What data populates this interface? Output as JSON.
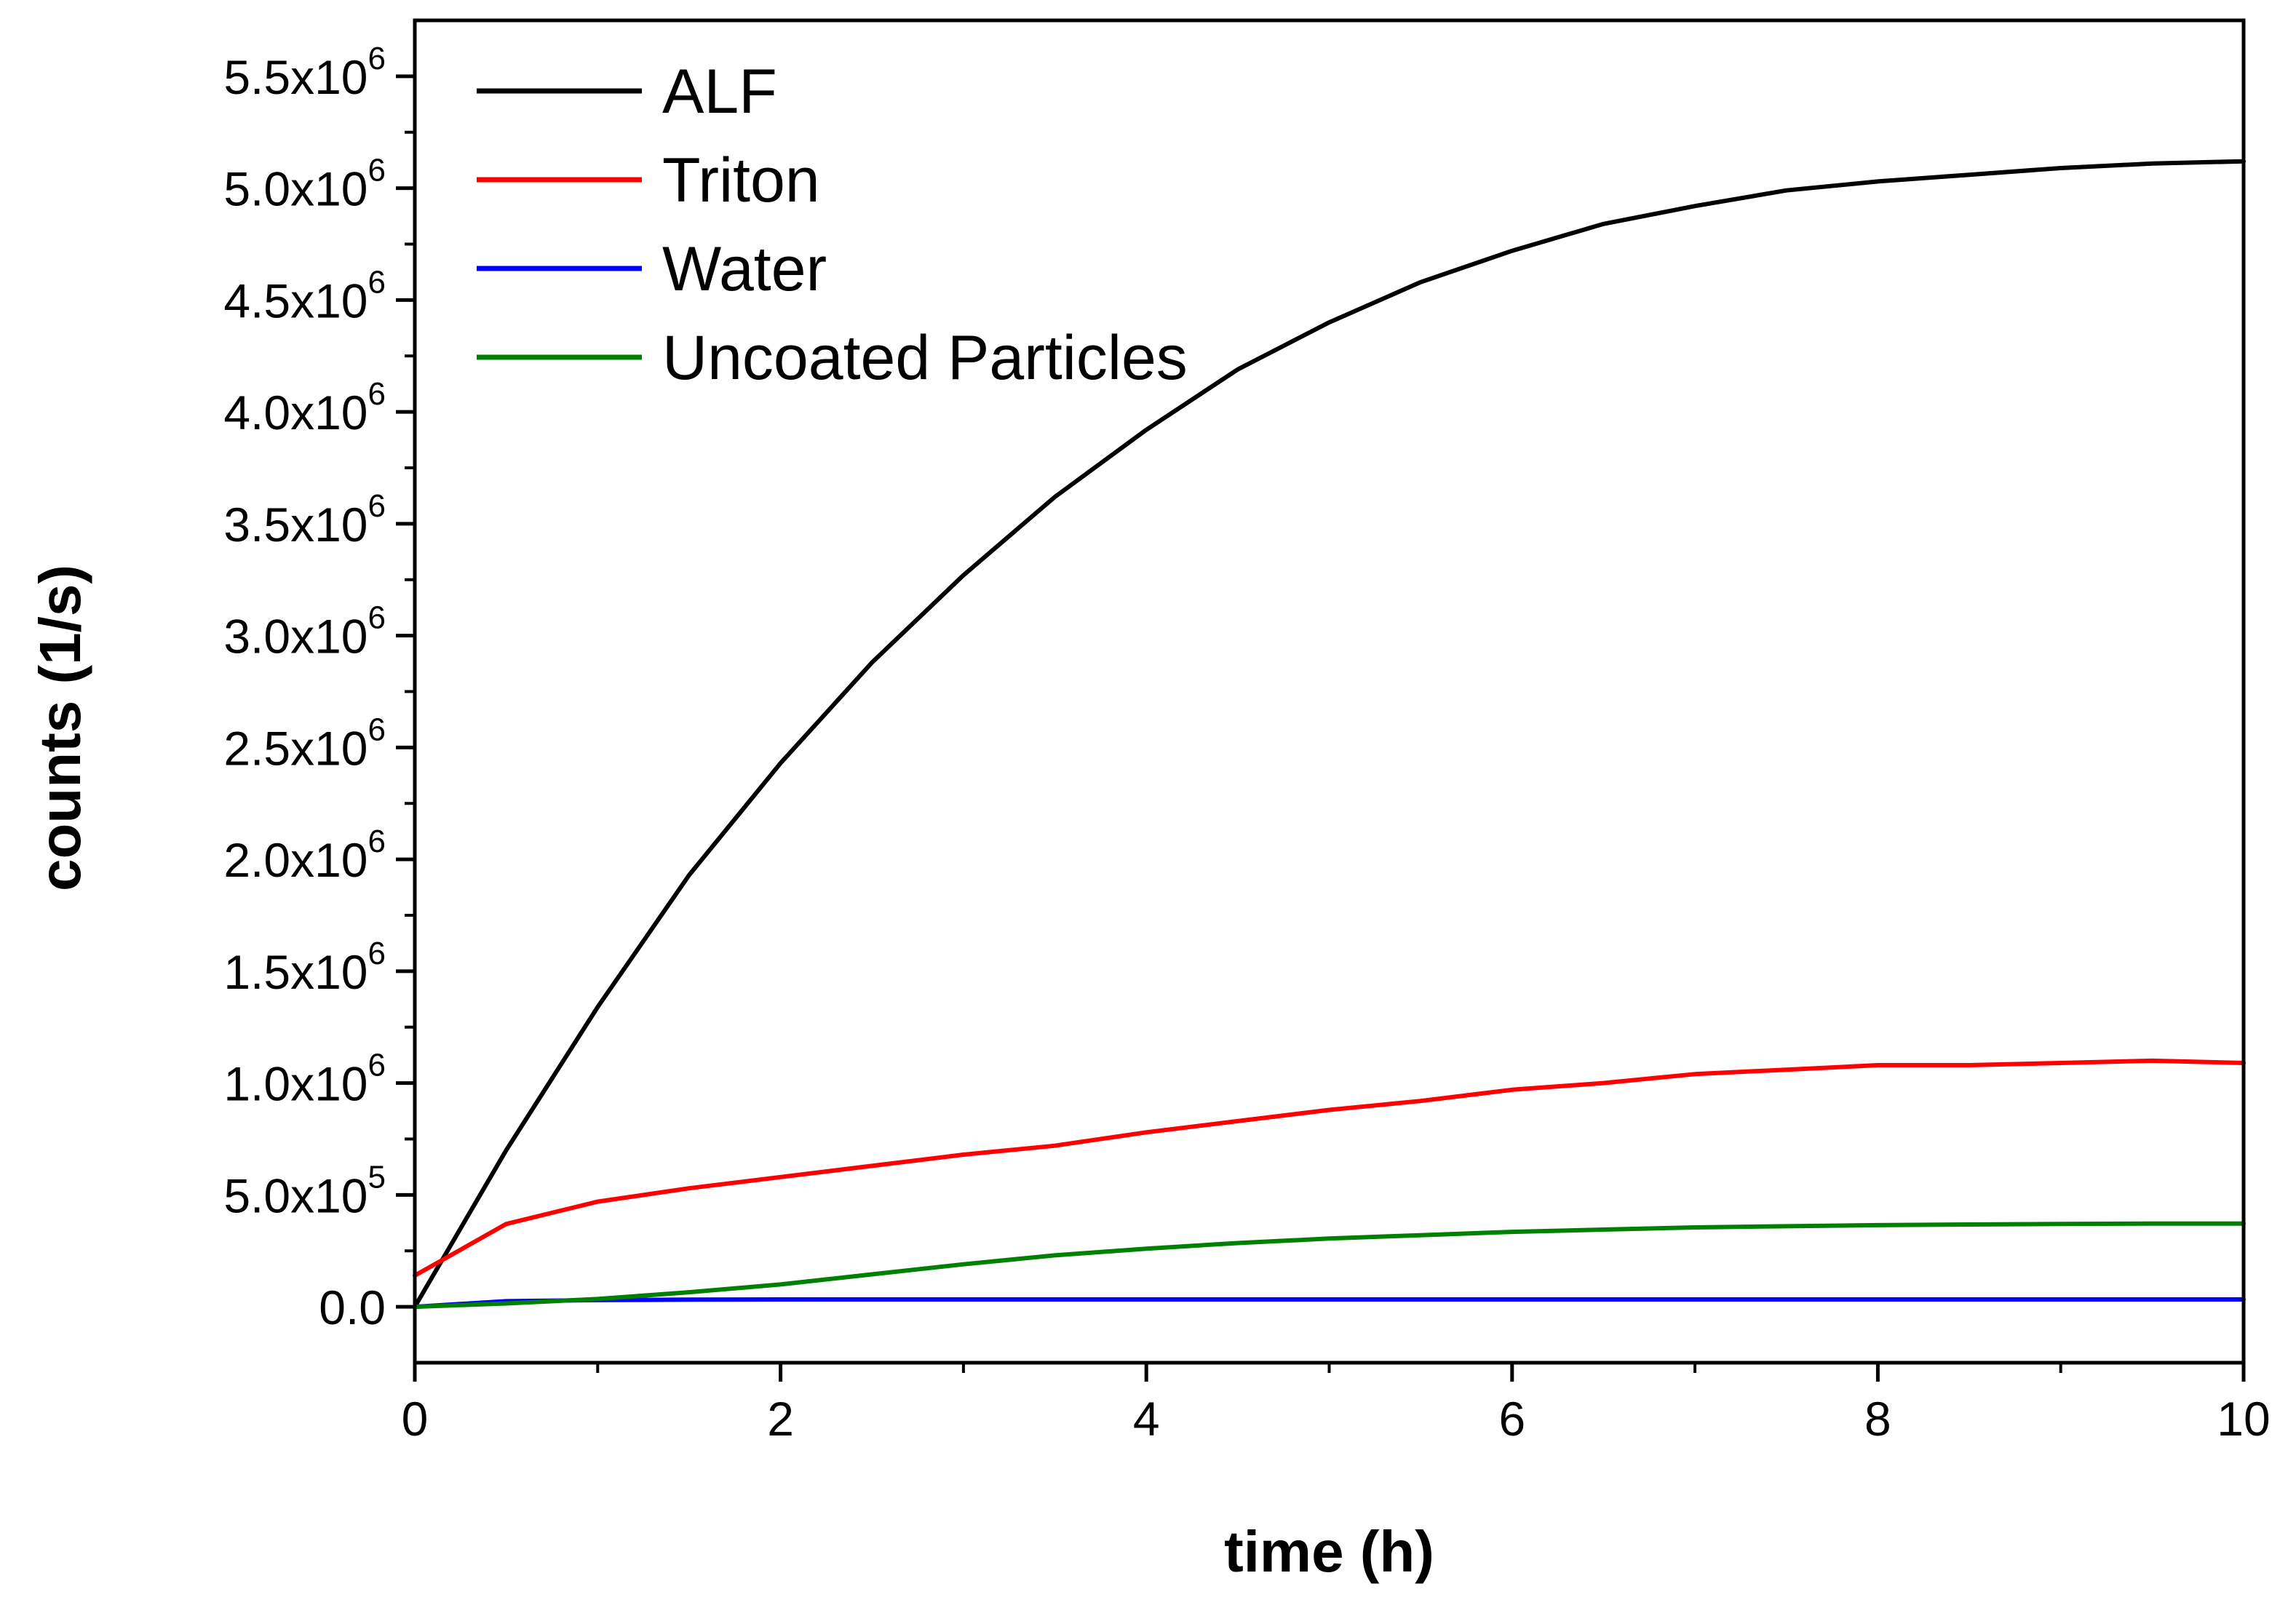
{
  "chart_data": {
    "type": "line",
    "title": "",
    "xlabel": "time (h)",
    "ylabel": "counts (1/s)",
    "xlim": [
      0,
      10
    ],
    "ylim": [
      -250000,
      5750000
    ],
    "x_ticks": [
      0,
      2,
      4,
      6,
      8,
      10
    ],
    "x_tick_labels": [
      "0",
      "2",
      "4",
      "6",
      "8",
      "10"
    ],
    "y_ticks": [
      0,
      500000,
      1000000,
      1500000,
      2000000,
      2500000,
      3000000,
      3500000,
      4000000,
      4500000,
      5000000,
      5500000
    ],
    "y_tick_labels": [
      {
        "mantissa": "0.0",
        "exponent": ""
      },
      {
        "mantissa": "5.0x10",
        "exponent": "5"
      },
      {
        "mantissa": "1.0x10",
        "exponent": "6"
      },
      {
        "mantissa": "1.5x10",
        "exponent": "6"
      },
      {
        "mantissa": "2.0x10",
        "exponent": "6"
      },
      {
        "mantissa": "2.5x10",
        "exponent": "6"
      },
      {
        "mantissa": "3.0x10",
        "exponent": "6"
      },
      {
        "mantissa": "3.5x10",
        "exponent": "6"
      },
      {
        "mantissa": "4.0x10",
        "exponent": "6"
      },
      {
        "mantissa": "4.5x10",
        "exponent": "6"
      },
      {
        "mantissa": "5.0x10",
        "exponent": "6"
      },
      {
        "mantissa": "5.5x10",
        "exponent": "6"
      }
    ],
    "grid": false,
    "legend_position": "top-left",
    "x": [
      0,
      0.5,
      1,
      1.5,
      2,
      2.5,
      3,
      3.5,
      4,
      4.5,
      5,
      5.5,
      6,
      6.5,
      7,
      7.5,
      8,
      8.5,
      9,
      9.5,
      10
    ],
    "series": [
      {
        "name": "ALF",
        "color": "#000000",
        "values": [
          0,
          700000,
          1340000,
          1930000,
          2430000,
          2880000,
          3270000,
          3620000,
          3920000,
          4190000,
          4400000,
          4580000,
          4720000,
          4840000,
          4920000,
          4990000,
          5030000,
          5060000,
          5090000,
          5110000,
          5120000
        ]
      },
      {
        "name": "Triton",
        "color": "#ff0000",
        "values": [
          140000,
          370000,
          470000,
          530000,
          580000,
          630000,
          680000,
          720000,
          780000,
          830000,
          880000,
          920000,
          970000,
          1000000,
          1040000,
          1060000,
          1080000,
          1080000,
          1090000,
          1100000,
          1090000
        ]
      },
      {
        "name": "Water",
        "color": "#0000ff",
        "values": [
          0,
          25000,
          30000,
          32000,
          33000,
          33000,
          33000,
          33000,
          33000,
          33000,
          33000,
          33000,
          33000,
          33000,
          33000,
          33000,
          33000,
          33000,
          33000,
          33000,
          33000
        ]
      },
      {
        "name": "Uncoated Particles",
        "color": "#008000",
        "values": [
          0,
          15000,
          35000,
          65000,
          100000,
          145000,
          190000,
          230000,
          260000,
          285000,
          305000,
          320000,
          335000,
          345000,
          355000,
          360000,
          365000,
          368000,
          370000,
          372000,
          372000
        ]
      }
    ]
  }
}
